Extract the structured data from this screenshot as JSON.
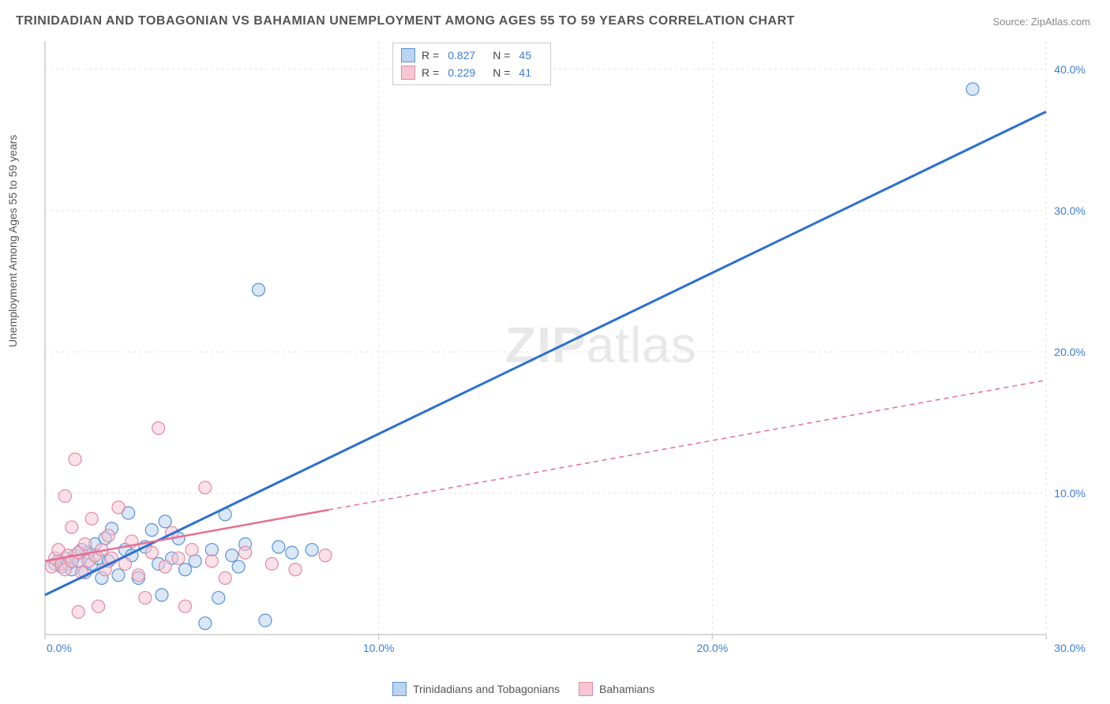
{
  "title": "TRINIDADIAN AND TOBAGONIAN VS BAHAMIAN UNEMPLOYMENT AMONG AGES 55 TO 59 YEARS CORRELATION CHART",
  "source": "Source: ZipAtlas.com",
  "y_axis_label": "Unemployment Among Ages 55 to 59 years",
  "watermark": {
    "bold": "ZIP",
    "light": "atlas"
  },
  "chart": {
    "type": "scatter",
    "background_color": "#ffffff",
    "grid_color": "#e2e2e2",
    "axis_color": "#cccccc",
    "xlim": [
      0,
      30
    ],
    "ylim": [
      0,
      42
    ],
    "xtick_positions": [
      0,
      10,
      20,
      30
    ],
    "xtick_labels": [
      "0.0%",
      "10.0%",
      "20.0%",
      "30.0%"
    ],
    "xtick_color": "#3b7dd8",
    "ytick_positions": [
      10,
      20,
      30,
      40
    ],
    "ytick_labels": [
      "10.0%",
      "20.0%",
      "30.0%",
      "40.0%"
    ],
    "ytick_color": "#3b7dd8",
    "marker_radius": 8,
    "marker_stroke_width": 1.2,
    "series": [
      {
        "name": "Trinidadians and Tobagonians",
        "fill": "#bcd4f0",
        "stroke": "#5a93d4",
        "fill_opacity": 0.55,
        "R": "0.827",
        "N": "45",
        "trend": {
          "x1": 0,
          "y1": 2.8,
          "x2": 30,
          "y2": 37.0,
          "solid_to_x": 30,
          "stroke": "#2c6fd1",
          "width": 3
        },
        "points": [
          [
            0.3,
            5.0
          ],
          [
            0.4,
            5.2
          ],
          [
            0.5,
            4.8
          ],
          [
            0.6,
            5.4
          ],
          [
            0.7,
            5.0
          ],
          [
            0.8,
            4.6
          ],
          [
            0.9,
            5.6
          ],
          [
            1.0,
            5.2
          ],
          [
            1.1,
            6.0
          ],
          [
            1.2,
            4.4
          ],
          [
            1.3,
            5.8
          ],
          [
            1.4,
            5.0
          ],
          [
            1.5,
            6.4
          ],
          [
            1.6,
            5.4
          ],
          [
            1.7,
            4.0
          ],
          [
            1.8,
            6.8
          ],
          [
            1.9,
            5.2
          ],
          [
            2.0,
            7.5
          ],
          [
            2.2,
            4.2
          ],
          [
            2.4,
            6.0
          ],
          [
            2.5,
            8.6
          ],
          [
            2.6,
            5.6
          ],
          [
            2.8,
            4.0
          ],
          [
            3.0,
            6.2
          ],
          [
            3.2,
            7.4
          ],
          [
            3.4,
            5.0
          ],
          [
            3.5,
            2.8
          ],
          [
            3.6,
            8.0
          ],
          [
            3.8,
            5.4
          ],
          [
            4.0,
            6.8
          ],
          [
            4.2,
            4.6
          ],
          [
            4.5,
            5.2
          ],
          [
            4.8,
            0.8
          ],
          [
            5.0,
            6.0
          ],
          [
            5.2,
            2.6
          ],
          [
            5.4,
            8.5
          ],
          [
            5.6,
            5.6
          ],
          [
            5.8,
            4.8
          ],
          [
            6.0,
            6.4
          ],
          [
            6.4,
            24.4
          ],
          [
            6.6,
            1.0
          ],
          [
            7.0,
            6.2
          ],
          [
            7.4,
            5.8
          ],
          [
            8.0,
            6.0
          ],
          [
            27.8,
            38.6
          ]
        ]
      },
      {
        "name": "Bahamians",
        "fill": "#f6c7d3",
        "stroke": "#e18aa3",
        "fill_opacity": 0.55,
        "R": "0.229",
        "N": "41",
        "trend": {
          "x1": 0,
          "y1": 5.2,
          "x2": 30,
          "y2": 18.0,
          "solid_to_x": 8.5,
          "stroke": "#e56f8f",
          "width": 2.5
        },
        "points": [
          [
            0.2,
            4.8
          ],
          [
            0.3,
            5.4
          ],
          [
            0.4,
            6.0
          ],
          [
            0.5,
            5.0
          ],
          [
            0.6,
            9.8
          ],
          [
            0.6,
            4.6
          ],
          [
            0.7,
            5.6
          ],
          [
            0.8,
            7.6
          ],
          [
            0.8,
            5.2
          ],
          [
            0.9,
            12.4
          ],
          [
            1.0,
            5.8
          ],
          [
            1.1,
            4.4
          ],
          [
            1.2,
            6.4
          ],
          [
            1.3,
            5.2
          ],
          [
            1.4,
            8.2
          ],
          [
            1.5,
            5.6
          ],
          [
            1.6,
            2.0
          ],
          [
            1.7,
            6.0
          ],
          [
            1.8,
            4.6
          ],
          [
            1.9,
            7.0
          ],
          [
            2.0,
            5.4
          ],
          [
            2.2,
            9.0
          ],
          [
            2.4,
            5.0
          ],
          [
            2.6,
            6.6
          ],
          [
            2.8,
            4.2
          ],
          [
            3.0,
            2.6
          ],
          [
            3.2,
            5.8
          ],
          [
            3.4,
            14.6
          ],
          [
            3.6,
            4.8
          ],
          [
            3.8,
            7.2
          ],
          [
            4.0,
            5.4
          ],
          [
            4.2,
            2.0
          ],
          [
            4.4,
            6.0
          ],
          [
            4.8,
            10.4
          ],
          [
            5.0,
            5.2
          ],
          [
            5.4,
            4.0
          ],
          [
            6.0,
            5.8
          ],
          [
            6.8,
            5.0
          ],
          [
            7.5,
            4.6
          ],
          [
            8.4,
            5.6
          ],
          [
            1.0,
            1.6
          ]
        ]
      }
    ]
  },
  "legend_bottom": [
    {
      "label": "Trinidadians and Tobagonians",
      "fill": "#bcd4f0",
      "stroke": "#5a93d4"
    },
    {
      "label": "Bahamians",
      "fill": "#f6c7d3",
      "stroke": "#e18aa3"
    }
  ]
}
